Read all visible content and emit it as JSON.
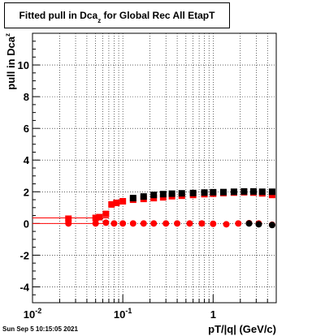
{
  "title": {
    "main": "Fitted pull in Dca",
    "subscript": "z",
    "suffix": " for Global Rec All EtapT"
  },
  "timestamp": "Sun Sep  5 10:15:05 2021",
  "chart_data": {
    "type": "scatter",
    "title": "Fitted pull in Dca_z for Global Rec All EtapT",
    "xlabel": "pT/|q| (GeV/c)",
    "ylabel": "pull in Dca_z",
    "x_scale": "log",
    "xlim": [
      0.01,
      5
    ],
    "ylim": [
      -5,
      12
    ],
    "grid": true,
    "x_ticks": [
      {
        "value": 0.01,
        "label": "10^-2"
      },
      {
        "value": 0.1,
        "label": "10^-1"
      },
      {
        "value": 1,
        "label": "1"
      }
    ],
    "y_ticks": [
      -4,
      -2,
      0,
      2,
      4,
      6,
      8,
      10
    ],
    "series": [
      {
        "marker": "square",
        "color": "#ff0000",
        "x": [
          0.025,
          0.05,
          0.055,
          0.065,
          0.075,
          0.085,
          0.1,
          0.13,
          0.17,
          0.22,
          0.28,
          0.35,
          0.45,
          0.6,
          0.8,
          1.0,
          1.3,
          1.7,
          2.2,
          2.8,
          3.5,
          4.5
        ],
        "y": [
          0.3,
          0.35,
          0.4,
          0.6,
          1.2,
          1.3,
          1.4,
          1.5,
          1.55,
          1.6,
          1.65,
          1.72,
          1.75,
          1.8,
          1.85,
          1.88,
          1.92,
          1.95,
          1.97,
          1.95,
          1.9,
          1.8
        ]
      },
      {
        "marker": "circle",
        "color": "#ff0000",
        "x": [
          0.025,
          0.05,
          0.065,
          0.08,
          0.1,
          0.13,
          0.17,
          0.22,
          0.3,
          0.4,
          0.55,
          0.75,
          1.0,
          1.4,
          1.9,
          2.5,
          3.2,
          4.5
        ],
        "y": [
          0.0,
          0.0,
          0.05,
          0.0,
          0.0,
          0.0,
          0.0,
          0.0,
          0.0,
          0.0,
          0.0,
          0.0,
          -0.02,
          -0.05,
          0.0,
          0.02,
          0.0,
          -0.08
        ]
      },
      {
        "marker": "square",
        "color": "#000000",
        "x": [
          0.13,
          0.17,
          0.22,
          0.28,
          0.35,
          0.45,
          0.6,
          0.8,
          1.0,
          1.3,
          1.7,
          2.2,
          2.8,
          3.5,
          4.5
        ],
        "y": [
          1.6,
          1.7,
          1.8,
          1.85,
          1.88,
          1.9,
          1.92,
          1.95,
          1.97,
          1.98,
          2.0,
          2.02,
          2.02,
          2.0,
          2.0
        ]
      },
      {
        "marker": "circle",
        "color": "#000000",
        "x": [
          2.5,
          3.2,
          4.5
        ],
        "y": [
          0.0,
          -0.05,
          -0.1
        ]
      }
    ],
    "reference_lines": [
      {
        "type": "horizontal",
        "y": 0.35,
        "color": "#ff0000",
        "x_range": [
          0.01,
          0.07
        ]
      },
      {
        "type": "horizontal",
        "y": 0.0,
        "color": "#ff0000",
        "x_range": [
          0.01,
          0.07
        ]
      }
    ]
  }
}
